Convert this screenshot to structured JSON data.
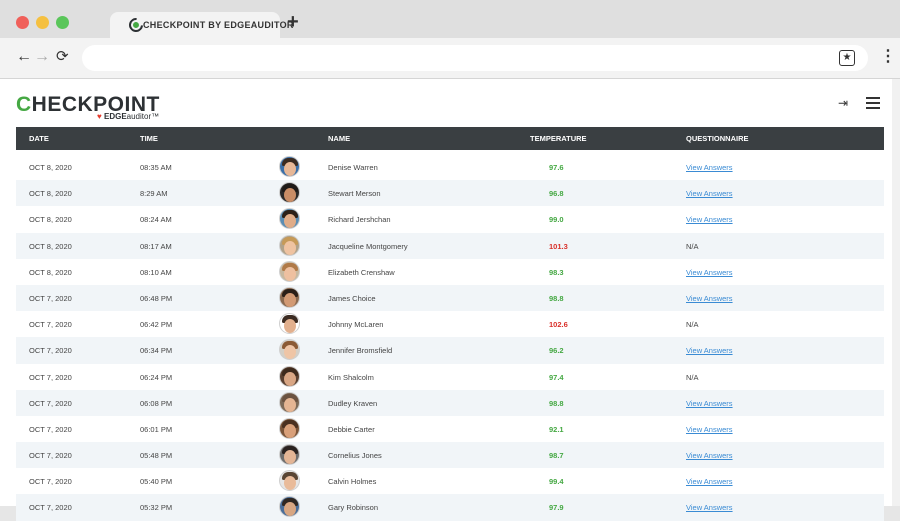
{
  "browser": {
    "tab_title": "CHECKPOINT BY EDGEAUDITOR",
    "new_tab": "+",
    "back": "←",
    "forward": "→",
    "reload": "⟳",
    "bookmark": "★",
    "menu": "⋮"
  },
  "header": {
    "logo_c": "C",
    "logo_rest": "HECKPOINT",
    "sublogo_mark": "♥",
    "sublogo_edge": "EDGE",
    "sublogo_auditor": "auditor™",
    "logout_icon": "⇥"
  },
  "table": {
    "columns": [
      "DATE",
      "TIME",
      "NAME",
      "TEMPERATURE",
      "QUESTIONNAIRE"
    ],
    "rows": [
      {
        "date": "OCT 8, 2020",
        "time": "08:35 AM",
        "name": "Denise Warren",
        "temp": "97.6",
        "status": "normal",
        "questionnaire": "View Answers",
        "hair": "#3a2a20",
        "skin": "#e7b796",
        "bg": "#3b6fa8"
      },
      {
        "date": "OCT 8, 2020",
        "time": "8:29 AM",
        "name": "Stewart Merson",
        "temp": "96.8",
        "status": "normal",
        "questionnaire": "View Answers",
        "hair": "#1f1a17",
        "skin": "#c98d66",
        "bg": "#2a2a2a"
      },
      {
        "date": "OCT 8, 2020",
        "time": "08:24 AM",
        "name": "Richard Jershchan",
        "temp": "99.0",
        "status": "normal",
        "questionnaire": "View Answers",
        "hair": "#2c2018",
        "skin": "#e0ac88",
        "bg": "#5b8db3"
      },
      {
        "date": "OCT 8, 2020",
        "time": "08:17 AM",
        "name": "Jacqueline Montgomery",
        "temp": "101.3",
        "status": "high",
        "questionnaire": "N/A",
        "hair": "#c69a58",
        "skin": "#efc3a1",
        "bg": "#b0a28a"
      },
      {
        "date": "OCT 8, 2020",
        "time": "08:10 AM",
        "name": "Elizabeth Crenshaw",
        "temp": "98.3",
        "status": "normal",
        "questionnaire": "View Answers",
        "hair": "#b07a48",
        "skin": "#eec0a0",
        "bg": "#c8b9a0"
      },
      {
        "date": "OCT 7, 2020",
        "time": "06:48 PM",
        "name": "James Choice",
        "temp": "98.8",
        "status": "normal",
        "questionnaire": "View Answers",
        "hair": "#2a1f18",
        "skin": "#d29a74",
        "bg": "#8a6a50"
      },
      {
        "date": "OCT 7, 2020",
        "time": "06:42 PM",
        "name": "Johnny McLaren",
        "temp": "102.6",
        "status": "high",
        "questionnaire": "N/A",
        "hair": "#3b2b22",
        "skin": "#e2b08e",
        "bg": "#ffffff"
      },
      {
        "date": "OCT 7, 2020",
        "time": "06:34 PM",
        "name": "Jennifer Bromsfield",
        "temp": "96.2",
        "status": "normal",
        "questionnaire": "View Answers",
        "hair": "#8b5a35",
        "skin": "#efc5a6",
        "bg": "#d4cfc6"
      },
      {
        "date": "OCT 7, 2020",
        "time": "06:24 PM",
        "name": "Kim Shalcolm",
        "temp": "97.4",
        "status": "normal",
        "questionnaire": "N/A",
        "hair": "#3e2a1c",
        "skin": "#d9a684",
        "bg": "#5a4030"
      },
      {
        "date": "OCT 7, 2020",
        "time": "06:08 PM",
        "name": "Dudley Kraven",
        "temp": "98.8",
        "status": "normal",
        "questionnaire": "View Answers",
        "hair": "#6b5240",
        "skin": "#e5b593",
        "bg": "#7d6a58"
      },
      {
        "date": "OCT 7, 2020",
        "time": "06:01 PM",
        "name": "Debbie Carter",
        "temp": "92.1",
        "status": "normal",
        "questionnaire": "View Answers",
        "hair": "#4a3020",
        "skin": "#d9a07a",
        "bg": "#7a5438"
      },
      {
        "date": "OCT 7, 2020",
        "time": "05:48 PM",
        "name": "Cornelius Jones",
        "temp": "98.7",
        "status": "normal",
        "questionnaire": "View Answers",
        "hair": "#2a2220",
        "skin": "#e3b595",
        "bg": "#6d6d6d"
      },
      {
        "date": "OCT 7, 2020",
        "time": "05:40 PM",
        "name": "Calvin Holmes",
        "temp": "99.4",
        "status": "normal",
        "questionnaire": "View Answers",
        "hair": "#5a4634",
        "skin": "#e9bb9a",
        "bg": "#e6e6e6"
      },
      {
        "date": "OCT 7, 2020",
        "time": "05:32 PM",
        "name": "Gary Robinson",
        "temp": "97.9",
        "status": "normal",
        "questionnaire": "View Answers",
        "hair": "#2f2722",
        "skin": "#d8a682",
        "bg": "#4b6e99"
      }
    ]
  },
  "colors": {
    "normal": "#45a843",
    "high": "#d9302a",
    "link": "#3a8bd4",
    "header_bg": "#3a3f42"
  }
}
